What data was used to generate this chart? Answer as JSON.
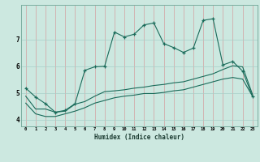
{
  "xlabel": "Humidex (Indice chaleur)",
  "bg_color": "#cce8e0",
  "grid_color_h": "#a8cfc8",
  "grid_color_v": "#d4a0a0",
  "line_color": "#1a6b5a",
  "x_values": [
    0,
    1,
    2,
    3,
    4,
    5,
    6,
    7,
    8,
    9,
    10,
    11,
    12,
    13,
    14,
    15,
    16,
    17,
    18,
    19,
    20,
    21,
    22,
    23
  ],
  "line1": [
    5.18,
    4.85,
    4.6,
    4.28,
    4.35,
    4.6,
    5.85,
    5.98,
    6.0,
    7.28,
    7.1,
    7.2,
    7.55,
    7.62,
    6.85,
    6.7,
    6.52,
    6.68,
    7.72,
    7.78,
    6.05,
    6.18,
    5.82,
    4.88
  ],
  "line2": [
    4.88,
    4.4,
    4.4,
    4.28,
    4.32,
    4.58,
    4.68,
    4.88,
    5.05,
    5.08,
    5.12,
    5.18,
    5.22,
    5.28,
    5.32,
    5.38,
    5.42,
    5.52,
    5.62,
    5.72,
    5.88,
    6.02,
    5.98,
    4.95
  ],
  "line3": [
    4.62,
    4.22,
    4.12,
    4.12,
    4.22,
    4.32,
    4.45,
    4.62,
    4.72,
    4.82,
    4.88,
    4.92,
    4.98,
    4.98,
    5.02,
    5.08,
    5.12,
    5.22,
    5.32,
    5.42,
    5.52,
    5.58,
    5.52,
    4.88
  ],
  "ylim": [
    3.75,
    8.3
  ],
  "yticks": [
    4,
    5,
    6,
    7
  ],
  "xlim": [
    -0.5,
    23.5
  ]
}
